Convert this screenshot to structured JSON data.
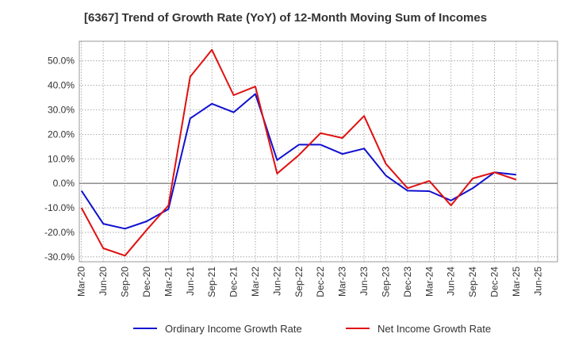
{
  "chart_data": {
    "type": "line",
    "title": "[6367]  Trend of Growth Rate (YoY) of 12-Month Moving Sum of Incomes",
    "xlabel": "",
    "ylabel": "",
    "categories": [
      "Mar-20",
      "Jun-20",
      "Sep-20",
      "Dec-20",
      "Mar-21",
      "Jun-21",
      "Sep-21",
      "Dec-21",
      "Mar-22",
      "Jun-22",
      "Sep-22",
      "Dec-22",
      "Mar-23",
      "Jun-23",
      "Sep-23",
      "Dec-23",
      "Mar-24",
      "Jun-24",
      "Sep-24",
      "Dec-24",
      "Mar-25",
      "Jun-25"
    ],
    "ylim": [
      -32,
      58
    ],
    "yticks": [
      -30,
      -20,
      -10,
      0,
      10,
      20,
      30,
      40,
      50
    ],
    "ytick_labels": [
      "-30.0%",
      "-20.0%",
      "-10.0%",
      "0.0%",
      "10.0%",
      "20.0%",
      "30.0%",
      "40.0%",
      "50.0%"
    ],
    "grid": true,
    "legend_position": "bottom",
    "series": [
      {
        "name": "Ordinary Income Growth Rate",
        "color": "#1010d0",
        "values": [
          -3.0,
          -16.5,
          -18.5,
          -15.5,
          -10.5,
          26.5,
          32.5,
          29.0,
          36.5,
          9.5,
          15.8,
          15.8,
          12.0,
          14.2,
          3.2,
          -3.0,
          -3.2,
          -7.0,
          -2.0,
          4.5,
          3.5,
          null
        ]
      },
      {
        "name": "Net Income Growth Rate",
        "color": "#e01010",
        "values": [
          -10.0,
          -26.5,
          -29.5,
          -19.0,
          -9.0,
          43.5,
          54.5,
          36.0,
          39.5,
          4.0,
          11.5,
          20.5,
          18.5,
          27.5,
          8.0,
          -2.0,
          1.0,
          -9.0,
          2.0,
          4.5,
          1.5,
          null
        ]
      }
    ]
  }
}
